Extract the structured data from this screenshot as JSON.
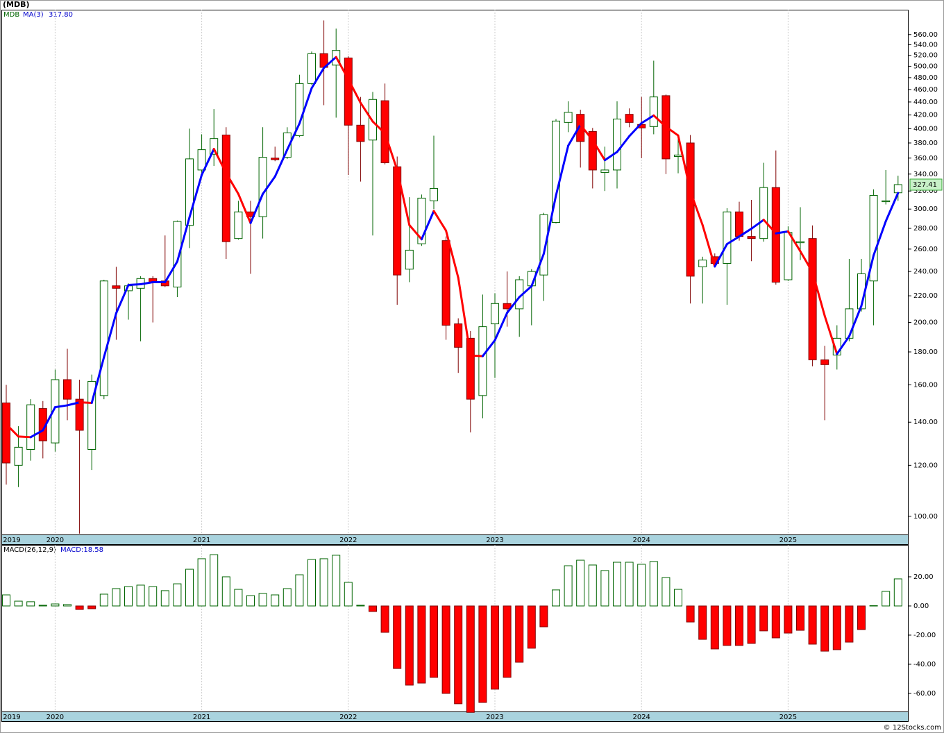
{
  "chart_data": [
    {
      "type": "candlestick",
      "title": "(MDB)",
      "symbol": "MDB",
      "categories": [
        "2019",
        null,
        null,
        null,
        "2020",
        null,
        null,
        null,
        null,
        null,
        null,
        null,
        null,
        null,
        null,
        null,
        "2021",
        null,
        null,
        null,
        null,
        null,
        null,
        null,
        null,
        null,
        null,
        null,
        "2022",
        null,
        null,
        null,
        null,
        null,
        null,
        null,
        null,
        null,
        null,
        null,
        "2023",
        null,
        null,
        null,
        null,
        null,
        null,
        null,
        null,
        null,
        null,
        null,
        "2024",
        null,
        null,
        null,
        null,
        null,
        null,
        null,
        null,
        null,
        null,
        null,
        "2025",
        null,
        null,
        null,
        null,
        null,
        null,
        null,
        null,
        null
      ],
      "open": [
        150,
        120,
        127,
        147,
        130,
        163,
        152,
        127,
        154,
        228,
        224,
        226,
        234,
        232,
        227,
        283,
        345,
        365,
        391,
        270,
        297,
        292,
        360,
        361,
        390,
        470,
        523,
        502,
        515,
        405,
        384,
        442,
        349,
        242,
        265,
        309,
        268,
        199,
        189,
        154,
        199,
        214,
        210,
        228,
        237,
        286,
        409,
        421,
        396,
        342,
        345,
        421,
        406,
        403,
        450,
        362,
        380,
        244,
        253,
        247,
        297,
        272,
        270,
        324,
        233,
        266,
        270,
        175,
        178,
        189,
        210,
        232,
        308,
        318
      ],
      "high": [
        160,
        138,
        152,
        151,
        169,
        182,
        163,
        166,
        233,
        244,
        230,
        236,
        236,
        273,
        288,
        400,
        392,
        429,
        402,
        309,
        309,
        402,
        375,
        402,
        485,
        527,
        589,
        572,
        518,
        448,
        456,
        470,
        362,
        313,
        316,
        390,
        272,
        203,
        194,
        221,
        222,
        240,
        236,
        242,
        296,
        414,
        441,
        428,
        401,
        375,
        441,
        430,
        448,
        510,
        452,
        392,
        391,
        253,
        256,
        301,
        308,
        310,
        354,
        370,
        282,
        302,
        283,
        184,
        198,
        251,
        251,
        322,
        345,
        338
      ],
      "low": [
        112,
        111,
        122,
        123,
        126,
        141,
        94,
        118,
        152,
        188,
        202,
        187,
        200,
        227,
        219,
        261,
        337,
        350,
        251,
        269,
        238,
        270,
        356,
        359,
        388,
        468,
        435,
        416,
        339,
        331,
        273,
        352,
        213,
        231,
        263,
        300,
        188,
        167,
        135,
        142,
        164,
        197,
        190,
        198,
        216,
        285,
        395,
        348,
        323,
        320,
        323,
        402,
        360,
        392,
        340,
        341,
        214,
        214,
        244,
        213,
        268,
        249,
        267,
        229,
        232,
        250,
        171,
        141,
        169,
        187,
        208,
        198,
        305,
        309
      ],
      "close": [
        121,
        128,
        149,
        131,
        163,
        152,
        136,
        162,
        232,
        226,
        228,
        234,
        231,
        228,
        287,
        359,
        371,
        386,
        267,
        297,
        292,
        361,
        358,
        394,
        470,
        523,
        498,
        529,
        405,
        382,
        444,
        354,
        237,
        259,
        312,
        323,
        198,
        183,
        152,
        197,
        214,
        210,
        233,
        240,
        294,
        411,
        424,
        382,
        345,
        345,
        414,
        409,
        401,
        448,
        359,
        364,
        236,
        250,
        247,
        297,
        272,
        270,
        324,
        231,
        276,
        267,
        175,
        172,
        189,
        210,
        238,
        315,
        309,
        327.41
      ],
      "up_color": "#006400",
      "down_color": "#ff0000",
      "log_scale": true,
      "ylim": [
        93.7,
        612
      ],
      "yticks": [
        {
          "value": 100,
          "label": "100.00"
        },
        {
          "value": 120,
          "label": "120.00"
        },
        {
          "value": 140,
          "label": "140.00"
        },
        {
          "value": 160,
          "label": "160.00"
        },
        {
          "value": 180,
          "label": "180.00"
        },
        {
          "value": 200,
          "label": "200.00"
        },
        {
          "value": 220,
          "label": "220.00"
        },
        {
          "value": 240,
          "label": "240.00"
        },
        {
          "value": 260,
          "label": "260.00"
        },
        {
          "value": 280,
          "label": "280.00"
        },
        {
          "value": 300,
          "label": "300.00"
        },
        {
          "value": 320,
          "label": "320.00"
        },
        {
          "value": 340,
          "label": "340.00"
        },
        {
          "value": 360,
          "label": "360.00"
        },
        {
          "value": 380,
          "label": "380.00"
        },
        {
          "value": 400,
          "label": "400.00"
        },
        {
          "value": 420,
          "label": "420.00"
        },
        {
          "value": 440,
          "label": "440.00"
        },
        {
          "value": 460,
          "label": "460.00"
        },
        {
          "value": 480,
          "label": "480.00"
        },
        {
          "value": 500,
          "label": "500.00"
        },
        {
          "value": 520,
          "label": "520.00"
        },
        {
          "value": 540,
          "label": "540.00"
        },
        {
          "value": 560,
          "label": "560.00"
        }
      ],
      "last_price": {
        "value": 327.41,
        "label": "327.41"
      },
      "ma": {
        "name": "MA(3)",
        "rising_color": "#0000ff",
        "falling_color": "#ff0000",
        "last_label": "317.80",
        "values": [
          139,
          133,
          132.7,
          136,
          147.7,
          148.7,
          150.3,
          150,
          176.7,
          206.7,
          228.7,
          229.3,
          231,
          231,
          248.7,
          291.3,
          339,
          372,
          341.3,
          316.7,
          285.3,
          316.7,
          337,
          371,
          407.3,
          462.3,
          497,
          516.7,
          477.3,
          438.7,
          410.3,
          393.3,
          345,
          283.3,
          269.3,
          298,
          277.7,
          234.7,
          177.7,
          177.3,
          187.7,
          207,
          219,
          227.7,
          255.7,
          315,
          376.3,
          405.7,
          383.7,
          357.3,
          368,
          389.3,
          408,
          419.3,
          402.7,
          390.3,
          319.7,
          283.3,
          244.3,
          264.7,
          272,
          279.7,
          288.7,
          275,
          277,
          258,
          239.3,
          204.7,
          178.7,
          190.3,
          212.3,
          254.3,
          287.3,
          317.8
        ]
      }
    },
    {
      "type": "bar",
      "title": "MACD(26,12,9)",
      "label": "MACD:18.58",
      "categories": [
        "2019",
        null,
        null,
        null,
        "2020",
        null,
        null,
        null,
        null,
        null,
        null,
        null,
        null,
        null,
        null,
        null,
        "2021",
        null,
        null,
        null,
        null,
        null,
        null,
        null,
        null,
        null,
        null,
        null,
        "2022",
        null,
        null,
        null,
        null,
        null,
        null,
        null,
        null,
        null,
        null,
        null,
        "2023",
        null,
        null,
        null,
        null,
        null,
        null,
        null,
        null,
        null,
        null,
        null,
        "2024",
        null,
        null,
        null,
        null,
        null,
        null,
        null,
        null,
        null,
        null,
        null,
        "2025",
        null,
        null,
        null,
        null,
        null,
        null,
        null,
        null,
        null
      ],
      "values": [
        7.6,
        3.3,
        2.9,
        0.5,
        1.4,
        1,
        -2.4,
        -1.9,
        8.1,
        11.9,
        13.3,
        14.3,
        13.3,
        10.5,
        15.2,
        25.2,
        32.4,
        35.2,
        20,
        11.4,
        7.1,
        8.6,
        7.6,
        11.9,
        21.4,
        31.9,
        32.4,
        34.8,
        16.2,
        0.5,
        -3.8,
        -18.1,
        -42.9,
        -54.3,
        -52.9,
        -49,
        -60,
        -67.1,
        -73,
        -66.2,
        -57.1,
        -49,
        -38.6,
        -29,
        -14.3,
        11,
        27.6,
        31.4,
        28.1,
        24.3,
        30,
        30,
        28.6,
        30.5,
        19.5,
        11.4,
        -11,
        -22.9,
        -29.5,
        -27.1,
        -27.1,
        -25.7,
        -17.1,
        -21.9,
        -18.6,
        -16.7,
        -26.2,
        -31,
        -30,
        -24.8,
        -16.2,
        0.2,
        10,
        18.58
      ],
      "pos_color": "#006400",
      "neg_color": "#ff0000",
      "ylim": [
        -72.4,
        41.9
      ],
      "yticks": [
        {
          "value": -60,
          "label": "-60.00"
        },
        {
          "value": -40,
          "label": "-40.00"
        },
        {
          "value": -20,
          "label": "-20.00"
        },
        {
          "value": 0,
          "label": "0.00"
        },
        {
          "value": 20,
          "label": "20.00"
        }
      ]
    }
  ],
  "footer": "© 12Stocks.com"
}
